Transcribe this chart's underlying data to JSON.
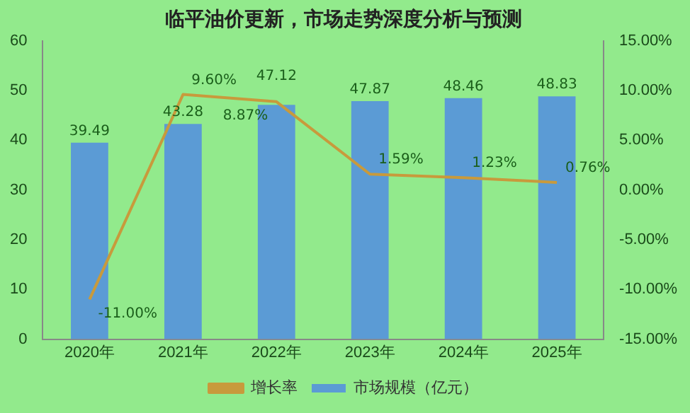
{
  "chart_data": {
    "type": "bar",
    "title": "临平油价更新，市场走势深度分析与预测",
    "categories": [
      "2020年",
      "2021年",
      "2022年",
      "2023年",
      "2024年",
      "2025年"
    ],
    "series": [
      {
        "name": "市场规模（亿元）",
        "color": "#5b9bd5",
        "values": [
          39.49,
          43.28,
          47.12,
          47.87,
          48.46,
          48.83
        ]
      },
      {
        "name": "增长率",
        "type": "line",
        "axis": "y2",
        "color": "#c89a3c",
        "values": [
          -11.0,
          9.6,
          8.87,
          1.59,
          1.23,
          0.76
        ],
        "value_labels": [
          "-11.00%",
          "9.60%",
          "8.87%",
          "1.59%",
          "1.23%",
          "0.76%"
        ]
      }
    ],
    "ylim": [
      0,
      60
    ],
    "yticks": [
      0,
      10,
      20,
      30,
      40,
      50,
      60
    ],
    "y2lim": [
      -15,
      15
    ],
    "y2ticks": [
      {
        "value": -15,
        "label": "-15.00%"
      },
      {
        "value": -10,
        "label": "-10.00%"
      },
      {
        "value": -5,
        "label": "-5.00%"
      },
      {
        "value": 0,
        "label": "0.00%"
      },
      {
        "value": 5,
        "label": "5.00%"
      },
      {
        "value": 10,
        "label": "10.00%"
      },
      {
        "value": 15,
        "label": "15.00%"
      }
    ],
    "data_labels": true,
    "grid": false,
    "legend": "bottom",
    "marker": "none",
    "line_style": "solid"
  }
}
